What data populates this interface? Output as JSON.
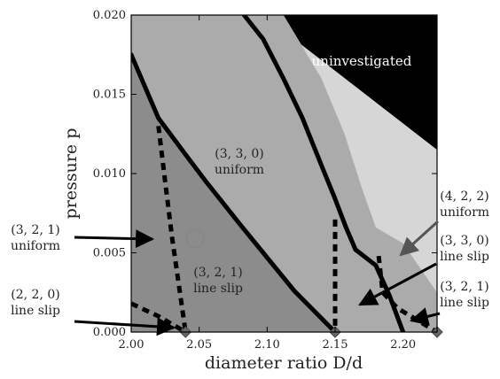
{
  "chart_data": {
    "type": "phase-diagram",
    "xlabel": "diameter ratio D/d",
    "ylabel": "pressure p",
    "xlim": [
      2.0,
      2.225
    ],
    "ylim": [
      0.0,
      0.02
    ],
    "x_ticks": [
      "2.00",
      "2.05",
      "2.10",
      "2.15",
      "2.20"
    ],
    "x_tick_values": [
      2.0,
      2.05,
      2.1,
      2.15,
      2.2
    ],
    "y_ticks": [
      "0.000",
      "0.005",
      "0.010",
      "0.015",
      "0.020"
    ],
    "y_tick_values": [
      0.0,
      0.005,
      0.01,
      0.015,
      0.02
    ],
    "colors": {
      "dark_gray": "#8c8c8c",
      "mid_gray": "#ababab",
      "light_gray": "#d6d6d6",
      "black": "#000000",
      "boundary": "#000000",
      "marker": "#888888"
    },
    "regions": [
      {
        "name": "uninvestigated",
        "fill": "black",
        "polygon": [
          [
            2.097,
            0.02
          ],
          [
            2.225,
            0.02
          ],
          [
            2.225,
            0.0115
          ]
        ]
      },
      {
        "name": "(4,2,2) uniform",
        "fill": "light_gray",
        "polygon": [
          [
            2.083,
            0.02
          ],
          [
            2.097,
            0.02
          ],
          [
            2.225,
            0.0115
          ],
          [
            2.225,
            0.0025
          ],
          [
            2.2,
            0.0056
          ],
          [
            2.18,
            0.0066
          ],
          [
            2.17,
            0.009
          ],
          [
            2.157,
            0.0125
          ],
          [
            2.14,
            0.016
          ],
          [
            2.126,
            0.018
          ],
          [
            2.112,
            0.02
          ]
        ]
      },
      {
        "name": "(3,3,0) uniform",
        "fill": "mid_gray",
        "polygon": [
          [
            2.0,
            0.02
          ],
          [
            2.112,
            0.02
          ],
          [
            2.126,
            0.018
          ],
          [
            2.14,
            0.016
          ],
          [
            2.157,
            0.0125
          ],
          [
            2.17,
            0.009
          ],
          [
            2.18,
            0.0066
          ],
          [
            2.2,
            0.0056
          ],
          [
            2.225,
            0.0025
          ],
          [
            2.225,
            0.0
          ],
          [
            2.15,
            0.0
          ],
          [
            2.12,
            0.0026
          ],
          [
            2.08,
            0.0068
          ],
          [
            2.055,
            0.0095
          ],
          [
            2.04,
            0.0112
          ],
          [
            2.02,
            0.0135
          ],
          [
            2.0,
            0.0175
          ]
        ]
      },
      {
        "name": "(3,2,1) uniform",
        "fill": "dark_gray",
        "polygon": [
          [
            2.0,
            0.0175
          ],
          [
            2.02,
            0.0135
          ],
          [
            2.04,
            0.0112
          ],
          [
            2.055,
            0.0095
          ],
          [
            2.08,
            0.0068
          ],
          [
            2.12,
            0.0026
          ],
          [
            2.15,
            0.0
          ],
          [
            2.0,
            0.0
          ]
        ]
      }
    ],
    "solid_boundaries": [
      [
        [
          2.0,
          0.0175
        ],
        [
          2.02,
          0.0135
        ],
        [
          2.04,
          0.0112
        ],
        [
          2.055,
          0.0095
        ],
        [
          2.08,
          0.0068
        ],
        [
          2.12,
          0.0026
        ],
        [
          2.15,
          0.0
        ]
      ],
      [
        [
          2.083,
          0.02
        ],
        [
          2.097,
          0.0185
        ],
        [
          2.112,
          0.016
        ],
        [
          2.126,
          0.0135
        ],
        [
          2.14,
          0.0105
        ],
        [
          2.15,
          0.0084
        ],
        [
          2.158,
          0.0066
        ],
        [
          2.165,
          0.0052
        ],
        [
          2.18,
          0.0042
        ],
        [
          2.19,
          0.0023
        ],
        [
          2.2,
          0.0
        ]
      ]
    ],
    "dashed_boundaries": [
      [
        [
          2.02,
          0.013
        ],
        [
          2.025,
          0.0095
        ],
        [
          2.03,
          0.006
        ],
        [
          2.035,
          0.003
        ],
        [
          2.04,
          0.0
        ]
      ],
      [
        [
          2.0,
          0.0018
        ],
        [
          2.02,
          0.001
        ],
        [
          2.04,
          0.0
        ]
      ],
      [
        [
          2.15,
          0.0071
        ],
        [
          2.15,
          0.0
        ]
      ],
      [
        [
          2.182,
          0.0048
        ],
        [
          2.185,
          0.0025
        ],
        [
          2.196,
          0.0015
        ],
        [
          2.225,
          0.0
        ]
      ]
    ],
    "open_circle": {
      "x": 2.047,
      "y": 0.0059
    },
    "diamond_markers": [
      {
        "x": 2.04,
        "y": 0.0
      },
      {
        "x": 2.15,
        "y": 0.0
      },
      {
        "x": 2.225,
        "y": 0.0
      }
    ],
    "annotations": {
      "uninvestigated": "uninvestigated",
      "a330_line1": "(3, 3, 0)",
      "a330_line2": "uniform",
      "a321s_line1": "(3, 2, 1)",
      "a321s_line2": "line slip",
      "a321u_line1": "(3, 2, 1)",
      "a321u_line2": "uniform",
      "a220_line1": "(2, 2, 0)",
      "a220_line2": "line slip",
      "a422_line1": "(4, 2, 2)",
      "a422_line2": "uniform",
      "a330s_line1": "(3, 3, 0)",
      "a330s_line2": "line slip",
      "a321sr_line1": "(3, 2, 1)",
      "a321sr_line2": "line slip"
    }
  }
}
